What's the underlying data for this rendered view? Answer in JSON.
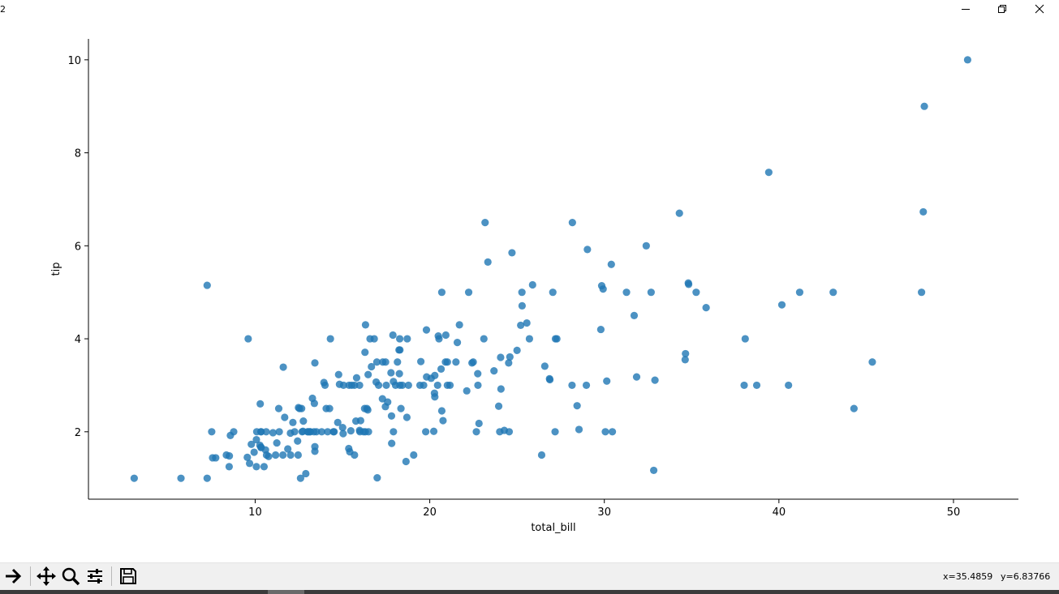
{
  "window": {
    "title": "2"
  },
  "chart_data": {
    "type": "scatter",
    "xlabel": "total_bill",
    "ylabel": "tip",
    "xlim": [
      0.45,
      53.72
    ],
    "ylim": [
      0.55,
      10.45
    ],
    "xticks": [
      10,
      20,
      30,
      40,
      50
    ],
    "yticks": [
      2,
      4,
      6,
      8,
      10
    ],
    "grid": false,
    "color": "#1f77b4",
    "points": [
      [
        3.07,
        1.0
      ],
      [
        5.75,
        1.0
      ],
      [
        7.25,
        1.0
      ],
      [
        7.25,
        5.15
      ],
      [
        7.51,
        2.0
      ],
      [
        7.56,
        1.44
      ],
      [
        7.74,
        1.44
      ],
      [
        8.35,
        1.5
      ],
      [
        8.51,
        1.25
      ],
      [
        8.52,
        1.48
      ],
      [
        8.58,
        1.92
      ],
      [
        8.77,
        2.0
      ],
      [
        9.55,
        1.45
      ],
      [
        9.6,
        4.0
      ],
      [
        9.68,
        1.32
      ],
      [
        9.78,
        1.73
      ],
      [
        9.94,
        1.56
      ],
      [
        10.07,
        1.25
      ],
      [
        10.07,
        1.83
      ],
      [
        10.09,
        2.0
      ],
      [
        10.27,
        1.71
      ],
      [
        10.29,
        2.6
      ],
      [
        10.33,
        2.0
      ],
      [
        10.33,
        1.67
      ],
      [
        10.34,
        1.66
      ],
      [
        10.34,
        2.0
      ],
      [
        10.51,
        1.25
      ],
      [
        10.59,
        1.61
      ],
      [
        10.63,
        2.0
      ],
      [
        10.65,
        1.5
      ],
      [
        10.77,
        1.47
      ],
      [
        11.02,
        1.98
      ],
      [
        11.17,
        1.5
      ],
      [
        11.24,
        1.76
      ],
      [
        11.35,
        2.5
      ],
      [
        11.38,
        2.0
      ],
      [
        11.59,
        1.5
      ],
      [
        11.61,
        3.39
      ],
      [
        11.69,
        2.31
      ],
      [
        11.87,
        1.63
      ],
      [
        12.02,
        1.97
      ],
      [
        12.03,
        1.5
      ],
      [
        12.16,
        2.2
      ],
      [
        12.26,
        2.0
      ],
      [
        12.43,
        1.8
      ],
      [
        12.46,
        1.5
      ],
      [
        12.48,
        2.52
      ],
      [
        12.54,
        2.5
      ],
      [
        12.6,
        1.0
      ],
      [
        12.66,
        2.5
      ],
      [
        12.69,
        2.0
      ],
      [
        12.74,
        2.01
      ],
      [
        12.76,
        2.23
      ],
      [
        12.9,
        1.1
      ],
      [
        13.0,
        2.0
      ],
      [
        13.03,
        2.0
      ],
      [
        13.13,
        2.0
      ],
      [
        13.16,
        2.0
      ],
      [
        13.28,
        2.72
      ],
      [
        13.37,
        2.0
      ],
      [
        13.39,
        2.61
      ],
      [
        13.42,
        3.48
      ],
      [
        13.42,
        1.68
      ],
      [
        13.42,
        1.58
      ],
      [
        13.51,
        2.0
      ],
      [
        13.81,
        2.0
      ],
      [
        13.94,
        3.06
      ],
      [
        14.0,
        3.0
      ],
      [
        14.07,
        2.5
      ],
      [
        14.15,
        2.0
      ],
      [
        14.26,
        2.5
      ],
      [
        14.31,
        4.0
      ],
      [
        14.48,
        2.0
      ],
      [
        14.52,
        2.0
      ],
      [
        14.73,
        2.2
      ],
      [
        14.78,
        3.23
      ],
      [
        14.83,
        3.02
      ],
      [
        15.01,
        2.09
      ],
      [
        15.04,
        1.96
      ],
      [
        15.06,
        3.0
      ],
      [
        15.36,
        1.64
      ],
      [
        15.38,
        3.0
      ],
      [
        15.42,
        1.57
      ],
      [
        15.48,
        2.02
      ],
      [
        15.53,
        3.0
      ],
      [
        15.69,
        1.5
      ],
      [
        15.69,
        3.0
      ],
      [
        15.77,
        2.23
      ],
      [
        15.81,
        3.16
      ],
      [
        15.98,
        2.03
      ],
      [
        15.98,
        3.0
      ],
      [
        16.0,
        2.0
      ],
      [
        16.04,
        2.24
      ],
      [
        16.21,
        2.0
      ],
      [
        16.27,
        2.5
      ],
      [
        16.29,
        3.71
      ],
      [
        16.31,
        2.0
      ],
      [
        16.32,
        4.3
      ],
      [
        16.4,
        2.5
      ],
      [
        16.45,
        2.47
      ],
      [
        16.47,
        3.23
      ],
      [
        16.49,
        2.0
      ],
      [
        16.58,
        4.0
      ],
      [
        16.66,
        3.4
      ],
      [
        16.82,
        4.0
      ],
      [
        16.93,
        3.07
      ],
      [
        16.97,
        3.5
      ],
      [
        16.99,
        1.01
      ],
      [
        17.07,
        3.0
      ],
      [
        17.29,
        2.71
      ],
      [
        17.31,
        3.5
      ],
      [
        17.46,
        2.54
      ],
      [
        17.47,
        3.5
      ],
      [
        17.51,
        3.0
      ],
      [
        17.59,
        2.64
      ],
      [
        17.78,
        3.27
      ],
      [
        17.81,
        2.34
      ],
      [
        17.82,
        1.75
      ],
      [
        17.89,
        4.08
      ],
      [
        17.92,
        3.08
      ],
      [
        17.92,
        2.0
      ],
      [
        18.04,
        3.0
      ],
      [
        18.15,
        3.5
      ],
      [
        18.24,
        3.76
      ],
      [
        18.26,
        3.25
      ],
      [
        18.28,
        4.0
      ],
      [
        18.29,
        3.76
      ],
      [
        18.29,
        3.0
      ],
      [
        18.35,
        2.5
      ],
      [
        18.43,
        3.0
      ],
      [
        18.64,
        1.36
      ],
      [
        18.69,
        2.31
      ],
      [
        18.71,
        4.0
      ],
      [
        18.78,
        3.0
      ],
      [
        19.08,
        1.5
      ],
      [
        19.44,
        3.0
      ],
      [
        19.49,
        3.51
      ],
      [
        19.65,
        3.0
      ],
      [
        19.77,
        2.0
      ],
      [
        19.81,
        4.19
      ],
      [
        19.82,
        3.18
      ],
      [
        20.08,
        3.15
      ],
      [
        20.23,
        2.01
      ],
      [
        20.27,
        2.83
      ],
      [
        20.29,
        2.75
      ],
      [
        20.29,
        3.21
      ],
      [
        20.45,
        3.0
      ],
      [
        20.49,
        4.06
      ],
      [
        20.53,
        4.0
      ],
      [
        20.65,
        3.35
      ],
      [
        20.69,
        5.0
      ],
      [
        20.69,
        2.45
      ],
      [
        20.76,
        2.24
      ],
      [
        20.9,
        3.5
      ],
      [
        20.92,
        4.08
      ],
      [
        21.01,
        3.5
      ],
      [
        21.01,
        3.0
      ],
      [
        21.16,
        3.0
      ],
      [
        21.5,
        3.5
      ],
      [
        21.58,
        3.92
      ],
      [
        21.7,
        4.3
      ],
      [
        22.12,
        2.88
      ],
      [
        22.23,
        5.0
      ],
      [
        22.42,
        3.48
      ],
      [
        22.49,
        3.5
      ],
      [
        22.67,
        2.0
      ],
      [
        22.75,
        3.25
      ],
      [
        22.76,
        3.0
      ],
      [
        22.82,
        2.18
      ],
      [
        23.1,
        4.0
      ],
      [
        23.17,
        6.5
      ],
      [
        23.33,
        5.65
      ],
      [
        23.68,
        3.31
      ],
      [
        23.95,
        2.55
      ],
      [
        24.01,
        2.0
      ],
      [
        24.06,
        3.6
      ],
      [
        24.08,
        2.92
      ],
      [
        24.27,
        2.03
      ],
      [
        24.52,
        3.48
      ],
      [
        24.55,
        2.0
      ],
      [
        24.59,
        3.61
      ],
      [
        24.71,
        5.85
      ],
      [
        25.0,
        3.75
      ],
      [
        25.21,
        4.29
      ],
      [
        25.28,
        5.0
      ],
      [
        25.29,
        4.71
      ],
      [
        25.56,
        4.34
      ],
      [
        25.71,
        4.0
      ],
      [
        25.89,
        5.16
      ],
      [
        26.41,
        1.5
      ],
      [
        26.59,
        3.41
      ],
      [
        26.86,
        3.14
      ],
      [
        26.88,
        3.12
      ],
      [
        27.05,
        5.0
      ],
      [
        27.18,
        2.0
      ],
      [
        27.2,
        4.0
      ],
      [
        27.28,
        4.0
      ],
      [
        28.15,
        3.0
      ],
      [
        28.17,
        6.5
      ],
      [
        28.44,
        2.56
      ],
      [
        28.55,
        2.05
      ],
      [
        28.97,
        3.0
      ],
      [
        29.03,
        5.92
      ],
      [
        29.8,
        4.2
      ],
      [
        29.85,
        5.14
      ],
      [
        29.93,
        5.07
      ],
      [
        30.06,
        2.0
      ],
      [
        30.14,
        3.09
      ],
      [
        30.4,
        5.6
      ],
      [
        30.46,
        2.0
      ],
      [
        31.27,
        5.0
      ],
      [
        31.71,
        4.5
      ],
      [
        31.85,
        3.18
      ],
      [
        32.4,
        6.0
      ],
      [
        32.68,
        5.0
      ],
      [
        32.83,
        1.17
      ],
      [
        32.9,
        3.11
      ],
      [
        34.3,
        6.7
      ],
      [
        34.63,
        3.55
      ],
      [
        34.65,
        3.68
      ],
      [
        34.81,
        5.2
      ],
      [
        34.83,
        5.17
      ],
      [
        35.26,
        5.0
      ],
      [
        35.83,
        4.67
      ],
      [
        38.01,
        3.0
      ],
      [
        38.07,
        4.0
      ],
      [
        38.73,
        3.0
      ],
      [
        39.42,
        7.58
      ],
      [
        40.17,
        4.73
      ],
      [
        40.55,
        3.0
      ],
      [
        41.19,
        5.0
      ],
      [
        43.11,
        5.0
      ],
      [
        44.3,
        2.5
      ],
      [
        45.35,
        3.5
      ],
      [
        48.17,
        5.0
      ],
      [
        48.27,
        6.73
      ],
      [
        48.33,
        9.0
      ],
      [
        50.81,
        10.0
      ]
    ]
  },
  "toolbar": {
    "icons": [
      "forward-arrow-icon",
      "pan-icon",
      "zoom-icon",
      "configure-subplots-icon",
      "save-icon"
    ],
    "x_readout": "x=35.4859",
    "y_readout": "y=6.83766"
  }
}
